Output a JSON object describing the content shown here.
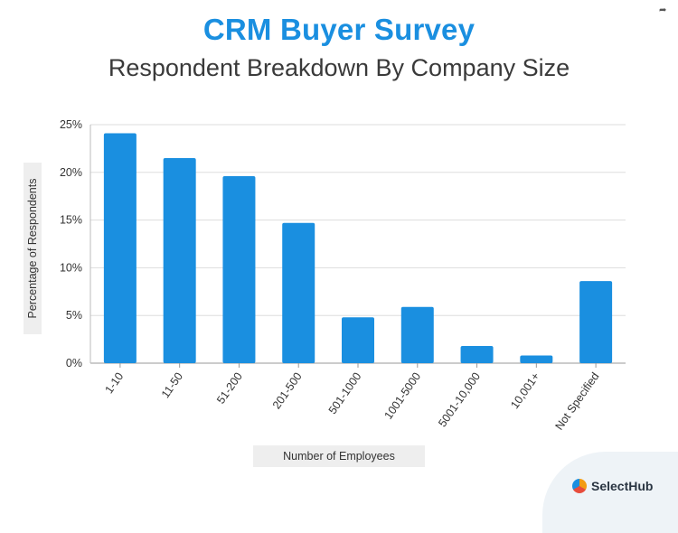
{
  "header": {
    "title": "CRM Buyer Survey",
    "subtitle": "Respondent Breakdown By Company Size"
  },
  "brand": {
    "name": "SelectHub",
    "icon": "selecthub-logo-icon"
  },
  "colors": {
    "bar": "#1a8fe0",
    "title": "#1a8fe0",
    "grid": "#dddddd"
  },
  "chart_data": {
    "type": "bar",
    "xlabel": "Number of Employees",
    "ylabel": "Percentage of Respondents",
    "categories": [
      "1-10",
      "11-50",
      "51-200",
      "201-500",
      "501-1000",
      "1001-5000",
      "5001-10,000",
      "10,001+",
      "Not Specified"
    ],
    "values": [
      24.1,
      21.5,
      19.6,
      14.7,
      4.8,
      5.9,
      1.8,
      0.8,
      8.6
    ],
    "unit": "%",
    "ylim": [
      0,
      25
    ],
    "yticks": [
      0,
      5,
      10,
      15,
      20,
      25
    ],
    "ytick_labels": [
      "0%",
      "5%",
      "10%",
      "15%",
      "20%",
      "25%"
    ],
    "grid": true,
    "legend": "none"
  }
}
